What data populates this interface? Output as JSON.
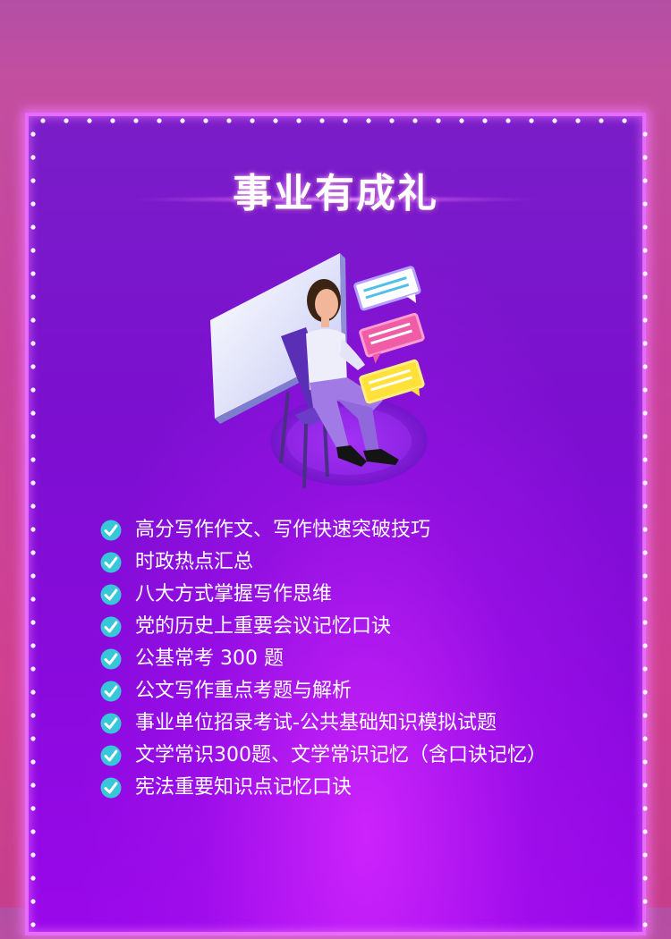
{
  "title": "事业有成礼",
  "items": [
    "高分写作作文、写作快速突破技巧",
    "时政热点汇总",
    "八大方式掌握写作思维",
    "党的历史上重要会议记忆口诀",
    "公基常考 300 题",
    "公文写作重点考题与解析",
    "事业单位招录考试-公共基础知识模拟试题",
    "文学常识300题、文学常识记忆（含口诀记忆）",
    "宪法重要知识点记忆口诀"
  ],
  "colors": {
    "background": "#c24f9f",
    "panel": "#7b10cf",
    "frame_light": "#e56cff",
    "check": "#38c7d8",
    "text": "#ffffff"
  }
}
